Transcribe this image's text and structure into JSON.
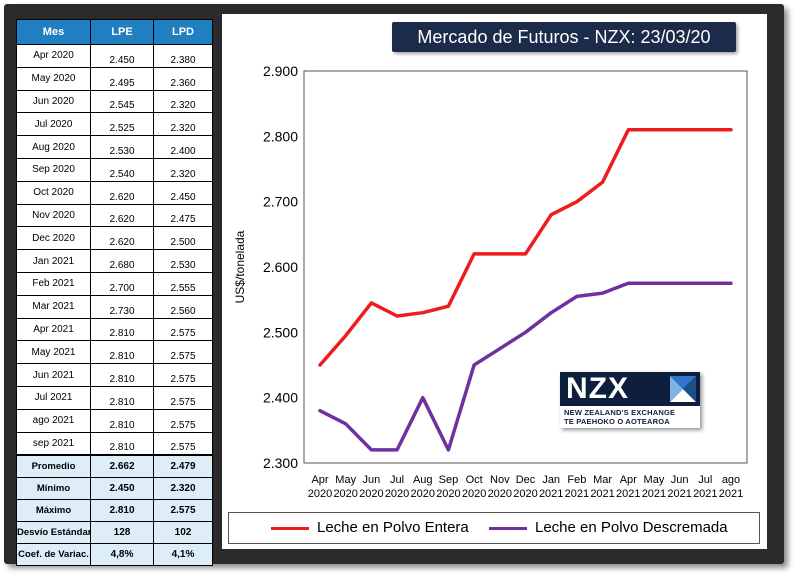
{
  "table": {
    "headers": [
      "Mes",
      "LPE",
      "LPD"
    ],
    "rows": [
      [
        "Apr 2020",
        "2.450",
        "2.380"
      ],
      [
        "May 2020",
        "2.495",
        "2.360"
      ],
      [
        "Jun 2020",
        "2.545",
        "2.320"
      ],
      [
        "Jul 2020",
        "2.525",
        "2.320"
      ],
      [
        "Aug 2020",
        "2.530",
        "2.400"
      ],
      [
        "Sep 2020",
        "2.540",
        "2.320"
      ],
      [
        "Oct 2020",
        "2.620",
        "2.450"
      ],
      [
        "Nov 2020",
        "2.620",
        "2.475"
      ],
      [
        "Dec 2020",
        "2.620",
        "2.500"
      ],
      [
        "Jan 2021",
        "2.680",
        "2.530"
      ],
      [
        "Feb 2021",
        "2.700",
        "2.555"
      ],
      [
        "Mar 2021",
        "2.730",
        "2.560"
      ],
      [
        "Apr 2021",
        "2.810",
        "2.575"
      ],
      [
        "May 2021",
        "2.810",
        "2.575"
      ],
      [
        "Jun 2021",
        "2.810",
        "2.575"
      ],
      [
        "Jul 2021",
        "2.810",
        "2.575"
      ],
      [
        "ago 2021",
        "2.810",
        "2.575"
      ],
      [
        "sep 2021",
        "2.810",
        "2.575"
      ]
    ],
    "stats": [
      [
        "Promedio",
        "2.662",
        "2.479"
      ],
      [
        "Mínimo",
        "2.450",
        "2.320"
      ],
      [
        "Máximo",
        "2.810",
        "2.575"
      ],
      [
        "Desvío Estándar",
        "128",
        "102"
      ],
      [
        "Coef. de Variac.",
        "4,8%",
        "4,1%"
      ]
    ]
  },
  "logo": {
    "text": "NZX",
    "line1": "NEW ZEALAND'S EXCHANGE",
    "line2": "TE PAEHOKO O AOTEAROA"
  },
  "colors": {
    "header_blue": "#1f7fc1",
    "stats_bg": "#ddeef8",
    "title_bg": "#1c2b4a",
    "series_lpe": "#ee1c1c",
    "series_lpd": "#7030a0"
  },
  "chart_data": {
    "type": "line",
    "title": "Mercado de Futuros - NZX: 23/03/20",
    "xlabel": "",
    "ylabel": "US$/tonelada",
    "ylim": [
      2300,
      2900
    ],
    "yticks": [
      2300,
      2400,
      2500,
      2600,
      2700,
      2800,
      2900
    ],
    "ytick_labels": [
      "2.300",
      "2.400",
      "2.500",
      "2.600",
      "2.700",
      "2.800",
      "2.900"
    ],
    "categories": [
      [
        "Apr",
        "2020"
      ],
      [
        "May",
        "2020"
      ],
      [
        "Jun",
        "2020"
      ],
      [
        "Jul",
        "2020"
      ],
      [
        "Aug",
        "2020"
      ],
      [
        "Sep",
        "2020"
      ],
      [
        "Oct",
        "2020"
      ],
      [
        "Nov",
        "2020"
      ],
      [
        "Dec",
        "2020"
      ],
      [
        "Jan",
        "2021"
      ],
      [
        "Feb",
        "2021"
      ],
      [
        "Mar",
        "2021"
      ],
      [
        "Apr",
        "2021"
      ],
      [
        "May",
        "2021"
      ],
      [
        "Jun",
        "2021"
      ],
      [
        "Jul",
        "2021"
      ],
      [
        "ago",
        "2021"
      ]
    ],
    "grid": false,
    "legend_position": "bottom",
    "series": [
      {
        "name": "Leche en Polvo Entera",
        "color": "#ee1c1c",
        "values": [
          2450,
          2495,
          2545,
          2525,
          2530,
          2540,
          2620,
          2620,
          2620,
          2680,
          2700,
          2730,
          2810,
          2810,
          2810,
          2810,
          2810
        ]
      },
      {
        "name": "Leche en Polvo Descremada",
        "color": "#7030a0",
        "values": [
          2380,
          2360,
          2320,
          2320,
          2400,
          2320,
          2450,
          2475,
          2500,
          2530,
          2555,
          2560,
          2575,
          2575,
          2575,
          2575,
          2575
        ]
      }
    ]
  }
}
